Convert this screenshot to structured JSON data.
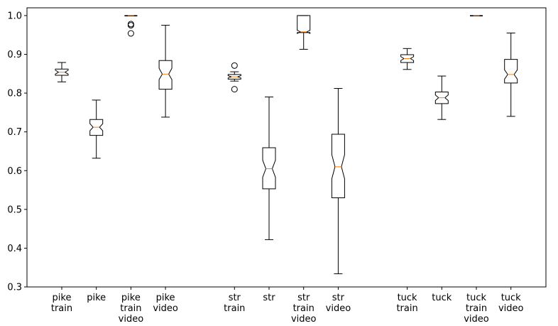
{
  "chart_data": {
    "type": "boxplot",
    "notched": true,
    "title": "",
    "xlabel": "",
    "ylabel": "",
    "ylim": [
      0.3,
      1.02
    ],
    "yticks": [
      "0.3",
      "0.4",
      "0.5",
      "0.6",
      "0.7",
      "0.8",
      "0.9",
      "1.0"
    ],
    "grid": false,
    "groups": [
      {
        "boxes": [
          {
            "label": [
              "pike",
              "train"
            ],
            "whisker_low": 0.829,
            "q1": 0.846,
            "median": 0.854,
            "q3": 0.862,
            "whisker_high": 0.879,
            "notch_low": 0.849,
            "notch_high": 0.859,
            "outliers": []
          },
          {
            "label": [
              "pike"
            ],
            "whisker_low": 0.632,
            "q1": 0.691,
            "median": 0.712,
            "q3": 0.732,
            "whisker_high": 0.782,
            "notch_low": 0.703,
            "notch_high": 0.721,
            "outliers": []
          },
          {
            "label": [
              "pike",
              "train",
              "video"
            ],
            "whisker_low": 0.999,
            "q1": 0.999,
            "median": 1.0,
            "q3": 1.0,
            "whisker_high": 1.0,
            "notch_low": 0.999,
            "notch_high": 1.0,
            "outliers": [
              0.978,
              0.975,
              0.954
            ]
          },
          {
            "label": [
              "pike",
              "video"
            ],
            "whisker_low": 0.738,
            "q1": 0.81,
            "median": 0.849,
            "q3": 0.884,
            "whisker_high": 0.975,
            "notch_low": 0.835,
            "notch_high": 0.864,
            "outliers": []
          }
        ]
      },
      {
        "boxes": [
          {
            "label": [
              "str",
              "train"
            ],
            "whisker_low": 0.831,
            "q1": 0.836,
            "median": 0.842,
            "q3": 0.848,
            "whisker_high": 0.855,
            "notch_low": 0.839,
            "notch_high": 0.845,
            "outliers": [
              0.871,
              0.81
            ]
          },
          {
            "label": [
              "str"
            ],
            "whisker_low": 0.422,
            "q1": 0.553,
            "median": 0.605,
            "q3": 0.659,
            "whisker_high": 0.79,
            "notch_low": 0.583,
            "notch_high": 0.627,
            "outliers": []
          },
          {
            "label": [
              "str",
              "train",
              "video"
            ],
            "whisker_low": 0.913,
            "q1": 0.956,
            "median": 0.958,
            "q3": 1.0,
            "whisker_high": 1.0,
            "notch_low": 0.954,
            "notch_high": 0.962,
            "outliers": []
          },
          {
            "label": [
              "str",
              "video"
            ],
            "whisker_low": 0.334,
            "q1": 0.53,
            "median": 0.61,
            "q3": 0.694,
            "whisker_high": 0.812,
            "notch_low": 0.579,
            "notch_high": 0.641,
            "outliers": []
          }
        ]
      },
      {
        "boxes": [
          {
            "label": [
              "tuck",
              "train"
            ],
            "whisker_low": 0.861,
            "q1": 0.879,
            "median": 0.889,
            "q3": 0.899,
            "whisker_high": 0.915,
            "notch_low": 0.884,
            "notch_high": 0.894,
            "outliers": []
          },
          {
            "label": [
              "tuck"
            ],
            "whisker_low": 0.732,
            "q1": 0.773,
            "median": 0.788,
            "q3": 0.803,
            "whisker_high": 0.844,
            "notch_low": 0.781,
            "notch_high": 0.795,
            "outliers": []
          },
          {
            "label": [
              "tuck",
              "train",
              "video"
            ],
            "whisker_low": 0.999,
            "q1": 0.999,
            "median": 1.0,
            "q3": 1.0,
            "whisker_high": 1.0,
            "notch_low": 0.999,
            "notch_high": 1.0,
            "outliers": []
          },
          {
            "label": [
              "tuck",
              "video"
            ],
            "whisker_low": 0.74,
            "q1": 0.826,
            "median": 0.848,
            "q3": 0.887,
            "whisker_high": 0.955,
            "notch_low": 0.836,
            "notch_high": 0.86,
            "outliers": []
          }
        ]
      }
    ],
    "colors": {
      "box": "#000000",
      "median": "#ff7f0e",
      "background": "#ffffff"
    }
  }
}
